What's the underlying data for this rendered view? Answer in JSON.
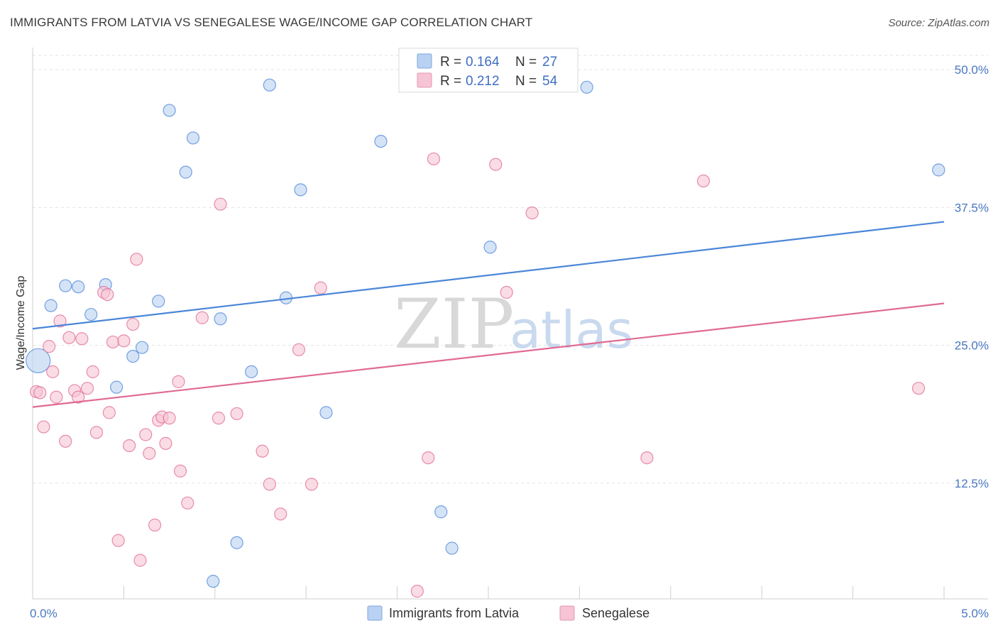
{
  "header": {
    "title": "IMMIGRANTS FROM LATVIA VS SENEGALESE WAGE/INCOME GAP CORRELATION CHART",
    "source": "Source: ZipAtlas.com"
  },
  "watermark": {
    "zip": "ZIP",
    "atlas": "atlas"
  },
  "chart_data": {
    "type": "scatter",
    "title": "IMMIGRANTS FROM LATVIA VS SENEGALESE WAGE/INCOME GAP CORRELATION CHART",
    "xlabel": "",
    "ylabel": "Wage/Income Gap",
    "xlim": [
      0,
      5
    ],
    "ylim": [
      2,
      52
    ],
    "x_ticks": [
      0,
      5
    ],
    "x_tick_labels": [
      "0.0%",
      "5.0%"
    ],
    "y_ticks": [
      12.5,
      25,
      37.5,
      50
    ],
    "y_tick_labels": [
      "12.5%",
      "25.0%",
      "37.5%",
      "50.0%"
    ],
    "grid": true,
    "legend_position": "top-center",
    "stats": [
      {
        "r_label": "R = ",
        "r_value": "0.164",
        "n_label": "N = ",
        "n_value": "27"
      },
      {
        "r_label": "R = ",
        "r_value": "0.212",
        "n_label": "N = ",
        "n_value": "54"
      }
    ],
    "series": [
      {
        "name": "Immigrants from Latvia",
        "color": "#4a86d8",
        "fill": "#b9d1f2",
        "trend": [
          [
            0,
            26.5
          ],
          [
            5,
            36.2
          ]
        ],
        "points": [
          [
            0.03,
            23.6,
            "large"
          ],
          [
            0.1,
            28.6
          ],
          [
            0.18,
            30.4
          ],
          [
            0.25,
            30.3
          ],
          [
            0.32,
            27.8
          ],
          [
            0.4,
            30.5
          ],
          [
            0.46,
            21.2
          ],
          [
            0.55,
            24.0
          ],
          [
            0.6,
            24.8
          ],
          [
            0.69,
            29.0
          ],
          [
            0.75,
            46.3
          ],
          [
            0.84,
            40.7
          ],
          [
            0.88,
            43.8
          ],
          [
            1.03,
            27.4
          ],
          [
            1.2,
            22.6
          ],
          [
            1.3,
            48.6
          ],
          [
            1.39,
            29.3
          ],
          [
            1.47,
            39.1
          ],
          [
            1.61,
            18.9
          ],
          [
            1.91,
            43.5
          ],
          [
            2.24,
            9.9
          ],
          [
            2.3,
            6.6
          ],
          [
            2.51,
            33.9
          ],
          [
            3.04,
            48.4
          ],
          [
            4.97,
            40.9
          ],
          [
            1.12,
            7.1
          ],
          [
            0.99,
            3.6
          ]
        ]
      },
      {
        "name": "Senegalese",
        "color": "#e06a93",
        "fill": "#f6c4d4",
        "trend": [
          [
            0,
            19.4
          ],
          [
            5,
            28.8
          ]
        ],
        "points": [
          [
            0.02,
            20.8
          ],
          [
            0.04,
            20.7
          ],
          [
            0.06,
            17.6
          ],
          [
            0.09,
            24.9
          ],
          [
            0.11,
            22.6
          ],
          [
            0.13,
            20.3
          ],
          [
            0.15,
            27.2
          ],
          [
            0.18,
            16.3
          ],
          [
            0.2,
            25.7
          ],
          [
            0.23,
            20.9
          ],
          [
            0.25,
            20.3
          ],
          [
            0.27,
            25.6
          ],
          [
            0.3,
            21.1
          ],
          [
            0.33,
            22.6
          ],
          [
            0.35,
            17.1
          ],
          [
            0.39,
            29.8
          ],
          [
            0.41,
            29.6
          ],
          [
            0.42,
            18.9
          ],
          [
            0.44,
            25.3
          ],
          [
            0.47,
            7.3
          ],
          [
            0.5,
            25.4
          ],
          [
            0.53,
            15.9
          ],
          [
            0.55,
            26.9
          ],
          [
            0.57,
            32.8
          ],
          [
            0.59,
            5.5
          ],
          [
            0.62,
            16.9
          ],
          [
            0.64,
            15.2
          ],
          [
            0.67,
            8.7
          ],
          [
            0.69,
            18.2
          ],
          [
            0.71,
            18.5
          ],
          [
            0.73,
            16.1
          ],
          [
            0.75,
            18.4
          ],
          [
            0.8,
            21.7
          ],
          [
            0.81,
            13.6
          ],
          [
            0.85,
            10.7
          ],
          [
            0.93,
            27.5
          ],
          [
            1.02,
            18.4
          ],
          [
            1.03,
            37.8
          ],
          [
            1.12,
            18.8
          ],
          [
            1.26,
            15.4
          ],
          [
            1.3,
            12.4
          ],
          [
            1.36,
            9.7
          ],
          [
            1.46,
            24.6
          ],
          [
            1.53,
            12.4
          ],
          [
            1.58,
            30.2
          ],
          [
            2.11,
            2.7
          ],
          [
            2.17,
            14.8
          ],
          [
            2.2,
            41.9
          ],
          [
            2.54,
            41.4
          ],
          [
            2.6,
            29.8
          ],
          [
            2.74,
            37.0
          ],
          [
            3.37,
            14.8
          ],
          [
            3.68,
            39.9
          ],
          [
            4.86,
            21.1
          ]
        ]
      }
    ]
  }
}
